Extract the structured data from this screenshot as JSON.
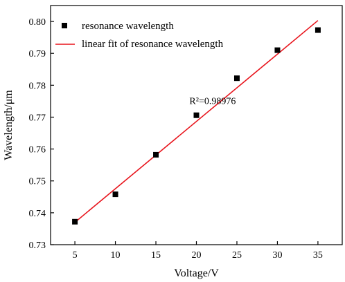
{
  "chart_data": {
    "type": "scatter",
    "xlabel": "Voltage/V",
    "ylabel": "Wavelength/μm",
    "xlim": [
      2,
      38
    ],
    "ylim": [
      0.73,
      0.805
    ],
    "xticks": [
      5,
      10,
      15,
      20,
      25,
      30,
      35
    ],
    "yticks": [
      0.73,
      0.74,
      0.75,
      0.76,
      0.77,
      0.78,
      0.79,
      0.8
    ],
    "xtick_labels": [
      "5",
      "10",
      "15",
      "20",
      "25",
      "30",
      "35"
    ],
    "ytick_labels": [
      "0.73",
      "0.74",
      "0.75",
      "0.76",
      "0.77",
      "0.78",
      "0.79",
      "0.80"
    ],
    "grid": false,
    "legend_position": "top-left",
    "series": [
      {
        "name": "resonance wavelength",
        "kind": "scatter",
        "marker": "square",
        "color": "#000000",
        "x": [
          5,
          10,
          15,
          20,
          25,
          30,
          35
        ],
        "y": [
          0.7372,
          0.7458,
          0.7582,
          0.7706,
          0.7822,
          0.791,
          0.7973
        ]
      },
      {
        "name": "linear fit of resonance wavelength",
        "kind": "line",
        "color": "#e8141c",
        "x": [
          5,
          35
        ],
        "y": [
          0.737,
          0.8003
        ]
      }
    ],
    "annotations": [
      {
        "text": "R²=0.98976",
        "x": 22,
        "y": 0.7741
      }
    ]
  }
}
